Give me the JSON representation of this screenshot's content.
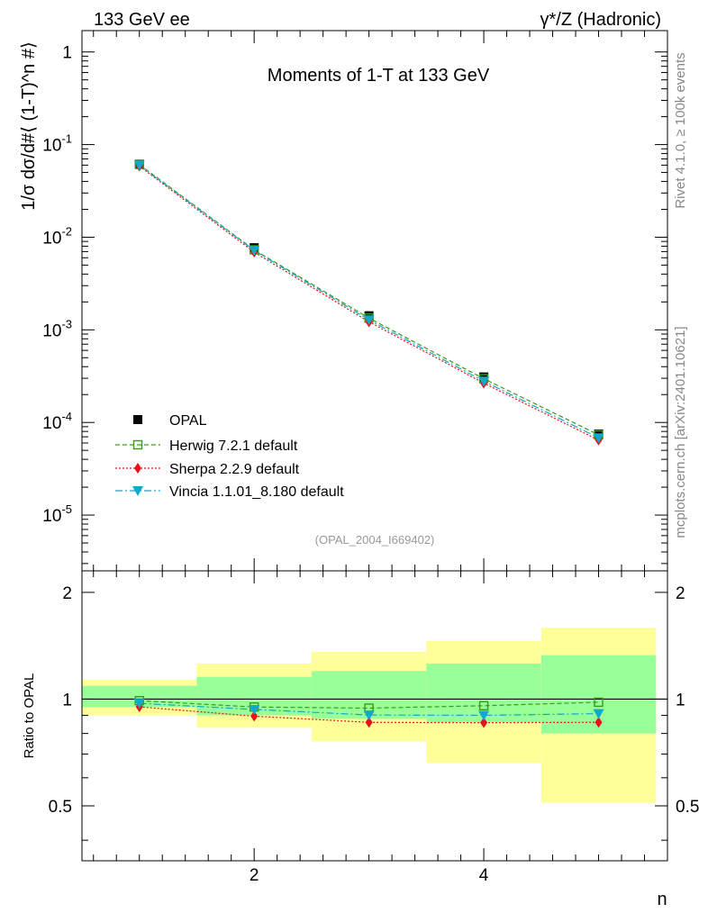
{
  "header": {
    "left": "133 GeV ee",
    "right": "γ*/Z (Hadronic)"
  },
  "side_labels": {
    "rivet": "Rivet 4.1.0, ≥ 100k events",
    "mcplots": "mcplots.cern.ch [arXiv:2401.10621]"
  },
  "chart_data": [
    {
      "type": "scatter",
      "title": "Moments of 1-T at 133 GeV",
      "ylabel": "1/σ  dσ/d#⟨ (1-T)^n #⟩",
      "yscale": "log",
      "ylim": [
        2.5e-06,
        1.7
      ],
      "xlim": [
        0.5,
        5.6
      ],
      "watermark": "(OPAL_2004_I669402)",
      "y_tick_labels": [
        "1",
        "10^-1",
        "10^-2",
        "10^-3",
        "10^-4",
        "10^-5"
      ],
      "x": [
        1,
        2,
        3,
        4,
        5
      ],
      "series": [
        {
          "name": "OPAL",
          "color": "#000000",
          "values": [
            0.0615,
            0.0077,
            0.00142,
            0.00031,
            7.5e-05
          ]
        },
        {
          "name": "Herwig 7.2.1 default",
          "color": "#3a9a1a",
          "values": [
            0.061,
            0.0073,
            0.00134,
            0.000297,
            7.35e-05
          ]
        },
        {
          "name": "Sherpa 2.2.9 default",
          "color": "#e8101a",
          "values": [
            0.0585,
            0.0069,
            0.00122,
            0.000266,
            6.45e-05
          ]
        },
        {
          "name": "Vincia 1.1.01_8.180 default",
          "color": "#12a8c8",
          "values": [
            0.0598,
            0.0072,
            0.00128,
            0.000279,
            6.83e-05
          ]
        }
      ]
    },
    {
      "type": "line",
      "ylabel": "Ratio to OPAL",
      "xlabel": "n",
      "ylim": [
        0.35,
        2.3
      ],
      "xlim": [
        0.5,
        5.6
      ],
      "y_tick_labels": [
        "0.5",
        "1",
        "2"
      ],
      "x_tick_labels": [
        "2",
        "4"
      ],
      "x": [
        1,
        2,
        3,
        4,
        5
      ],
      "bands": {
        "bin_edges": [
          0.5,
          1.5,
          2.5,
          3.5,
          4.5,
          5.5
        ],
        "yellow_low": [
          0.9,
          0.83,
          0.76,
          0.66,
          0.51
        ],
        "yellow_high": [
          1.135,
          1.26,
          1.36,
          1.46,
          1.59
        ],
        "green_low": [
          0.95,
          0.9,
          0.88,
          0.86,
          0.8
        ],
        "green_high": [
          1.09,
          1.155,
          1.2,
          1.26,
          1.33
        ]
      },
      "series": [
        {
          "name": "Herwig 7.2.1 default",
          "color": "#3a9a1a",
          "values": [
            0.99,
            0.95,
            0.943,
            0.958,
            0.98
          ]
        },
        {
          "name": "Sherpa 2.2.9 default",
          "color": "#e8101a",
          "values": [
            0.951,
            0.895,
            0.86,
            0.858,
            0.86
          ]
        },
        {
          "name": "Vincia 1.1.01_8.180 default",
          "color": "#12a8c8",
          "values": [
            0.973,
            0.935,
            0.902,
            0.9,
            0.91
          ]
        }
      ]
    }
  ]
}
